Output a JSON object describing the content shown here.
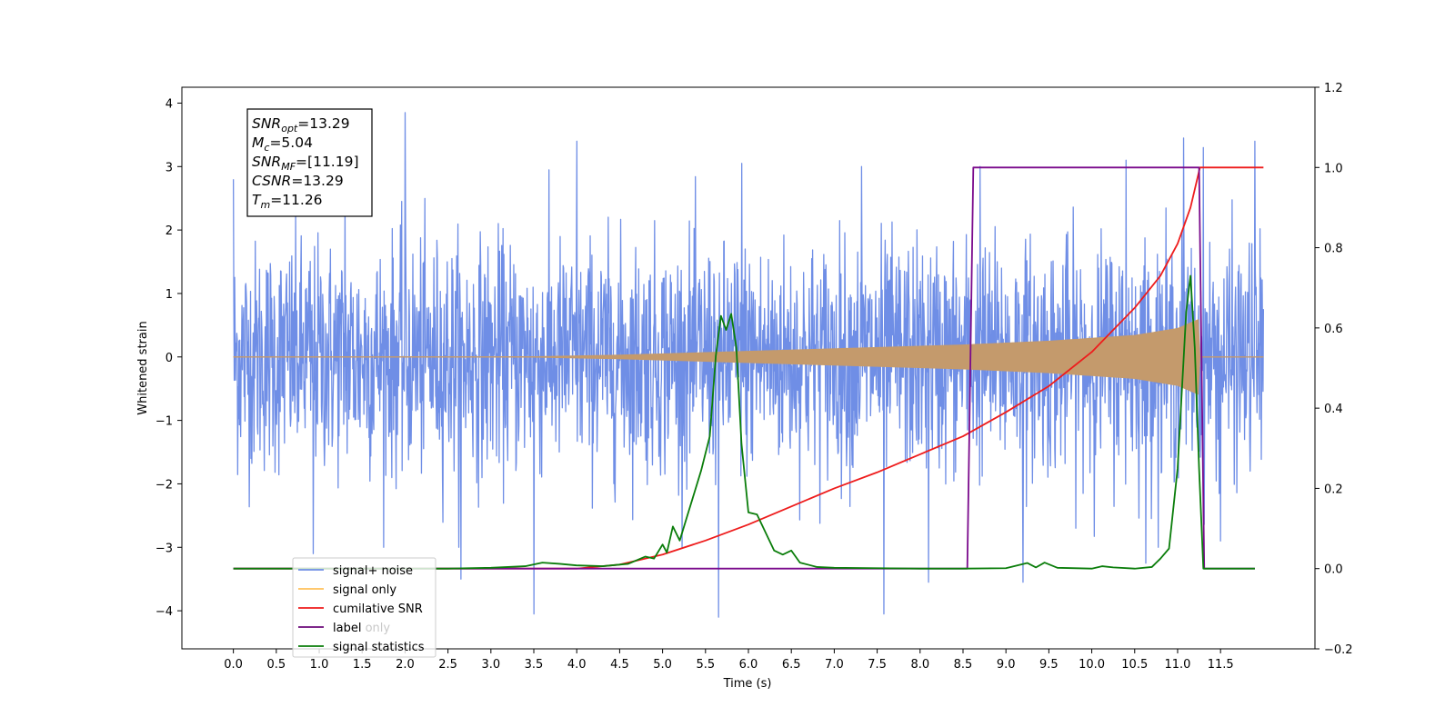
{
  "chart_data": {
    "type": "line",
    "xlabel": "Time (s)",
    "ylabel_left": "Whitened strain",
    "ylabel_right": "",
    "xlim": [
      -0.6,
      12.6
    ],
    "ylim_left": [
      -4.6,
      4.25
    ],
    "ylim_right": [
      -0.2,
      1.2
    ],
    "x_ticks": [
      0.0,
      0.5,
      1.0,
      1.5,
      2.0,
      2.5,
      3.0,
      3.5,
      4.0,
      4.5,
      5.0,
      5.5,
      6.0,
      6.5,
      7.0,
      7.5,
      8.0,
      8.5,
      9.0,
      9.5,
      10.0,
      10.5,
      11.0,
      11.5
    ],
    "x_tick_labels": [
      "0.0",
      "0.5",
      "1.0",
      "1.5",
      "2.0",
      "2.5",
      "3.0",
      "3.5",
      "4.0",
      "4.5",
      "5.0",
      "5.5",
      "6.0",
      "6.5",
      "7.0",
      "7.5",
      "8.0",
      "8.5",
      "9.0",
      "9.5",
      "10.0",
      "10.5",
      "11.0",
      "11.5"
    ],
    "y_left_ticks": [
      4,
      3,
      2,
      1,
      0,
      -1,
      -2,
      -3,
      -4
    ],
    "y_left_tick_labels": [
      "4",
      "3",
      "2",
      "1",
      "0",
      "−1",
      "−2",
      "−3",
      "−4"
    ],
    "y_right_ticks": [
      1.2,
      1.0,
      0.8,
      0.6,
      0.4,
      0.2,
      0.0,
      -0.2
    ],
    "y_right_tick_labels": [
      "1.2",
      "1.0",
      "0.8",
      "0.6",
      "0.4",
      "0.2",
      "0.0",
      "−0.2"
    ],
    "grid": false,
    "legend_position": "lower-left",
    "annotation": {
      "lines": [
        {
          "base": "SNR",
          "sub": "opt",
          "rest": "=13.29"
        },
        {
          "base": "M",
          "sub": "c",
          "rest": "=5.04"
        },
        {
          "base": "SNR",
          "sub": "MF",
          "rest": "=[11.19]"
        },
        {
          "base": "CSNR",
          "sub": "",
          "rest": "=13.29"
        },
        {
          "base": "T",
          "sub": "m",
          "rest": "=11.26"
        }
      ]
    },
    "series": [
      {
        "name": "signal+ noise",
        "axis": "left",
        "color": "#6f8ee6",
        "x_range": [
          0.0,
          12.0
        ],
        "sigma": 0.9,
        "spikes": [
          {
            "x": 0.0,
            "y": 2.8
          },
          {
            "x": 0.93,
            "y": -3.1
          },
          {
            "x": 1.3,
            "y": 2.5
          },
          {
            "x": 2.0,
            "y": 3.85
          },
          {
            "x": 2.65,
            "y": -3.5
          },
          {
            "x": 3.5,
            "y": -4.05
          },
          {
            "x": 4.0,
            "y": 3.4
          },
          {
            "x": 5.65,
            "y": -4.1
          },
          {
            "x": 5.92,
            "y": 3.05
          },
          {
            "x": 7.58,
            "y": -4.05
          },
          {
            "x": 7.32,
            "y": 3.0
          },
          {
            "x": 8.1,
            "y": -3.55
          },
          {
            "x": 8.7,
            "y": 3.0
          },
          {
            "x": 9.2,
            "y": -3.55
          },
          {
            "x": 10.4,
            "y": 3.1
          },
          {
            "x": 10.63,
            "y": -3.25
          },
          {
            "x": 11.07,
            "y": 3.45
          },
          {
            "x": 11.3,
            "y": 3.3
          },
          {
            "x": 11.9,
            "y": 3.4
          },
          {
            "x": 11.5,
            "y": -2.9
          }
        ]
      },
      {
        "name": "signal only",
        "axis": "left",
        "color": "#c49a6c",
        "x_range": [
          0.0,
          12.0
        ],
        "envelope_points": [
          [
            0.0,
            0.0
          ],
          [
            3.5,
            0.005
          ],
          [
            4.5,
            0.03
          ],
          [
            5.5,
            0.07
          ],
          [
            6.5,
            0.11
          ],
          [
            7.5,
            0.15
          ],
          [
            8.5,
            0.19
          ],
          [
            9.5,
            0.25
          ],
          [
            10.5,
            0.34
          ],
          [
            11.0,
            0.45
          ],
          [
            11.26,
            0.6
          ]
        ],
        "end_time": 11.26
      },
      {
        "name": "cumilative SNR",
        "axis": "right",
        "color": "#ee1c1c",
        "x": [
          0.0,
          4.0,
          4.5,
          5.0,
          5.5,
          6.0,
          6.5,
          7.0,
          7.5,
          8.0,
          8.5,
          9.0,
          9.5,
          10.0,
          10.5,
          10.8,
          11.0,
          11.15,
          11.26,
          11.27,
          12.0
        ],
        "y": [
          0.0,
          0.0,
          0.01,
          0.035,
          0.07,
          0.11,
          0.155,
          0.2,
          0.24,
          0.285,
          0.33,
          0.39,
          0.455,
          0.54,
          0.65,
          0.73,
          0.81,
          0.9,
          1.0,
          1.0,
          1.0
        ]
      },
      {
        "name": "label",
        "axis": "right",
        "color": "#7a0a8c",
        "x": [
          0.0,
          8.55,
          8.62,
          11.25,
          11.31,
          11.9
        ],
        "y": [
          0.0,
          0.0,
          1.0,
          1.0,
          0.0,
          0.0
        ]
      },
      {
        "name": "signal statistics",
        "axis": "right",
        "color": "#0a7d0a",
        "x": [
          0.0,
          2.5,
          3.0,
          3.4,
          3.6,
          3.8,
          4.0,
          4.3,
          4.6,
          4.8,
          4.9,
          5.0,
          5.05,
          5.12,
          5.2,
          5.3,
          5.45,
          5.55,
          5.62,
          5.68,
          5.74,
          5.8,
          5.86,
          5.92,
          6.0,
          6.1,
          6.2,
          6.3,
          6.4,
          6.5,
          6.6,
          6.8,
          7.0,
          7.5,
          8.0,
          8.5,
          9.0,
          9.25,
          9.35,
          9.45,
          9.6,
          10.0,
          10.12,
          10.25,
          10.5,
          10.7,
          10.8,
          10.9,
          11.0,
          11.1,
          11.15,
          11.2,
          11.25,
          11.3,
          11.9
        ],
        "y": [
          0.0,
          0.0,
          0.002,
          0.006,
          0.015,
          0.012,
          0.008,
          0.006,
          0.012,
          0.03,
          0.025,
          0.06,
          0.04,
          0.105,
          0.07,
          0.14,
          0.245,
          0.33,
          0.53,
          0.63,
          0.595,
          0.635,
          0.55,
          0.31,
          0.14,
          0.135,
          0.09,
          0.045,
          0.035,
          0.045,
          0.015,
          0.004,
          0.002,
          0.001,
          0.0,
          0.0,
          0.001,
          0.014,
          0.003,
          0.015,
          0.002,
          0.0,
          0.006,
          0.003,
          0.0,
          0.004,
          0.025,
          0.05,
          0.25,
          0.64,
          0.73,
          0.55,
          0.25,
          0.0,
          0.0
        ]
      }
    ],
    "legend_entries": [
      {
        "label": "signal+ noise",
        "color": "#6f8ee6"
      },
      {
        "label": "signal only",
        "color": "#ffc15a"
      },
      {
        "label": "cumilative SNR",
        "color": "#ee1c1c"
      },
      {
        "label": "label",
        "color": "#6b0a7a"
      },
      {
        "label": "signal statistics",
        "color": "#0a7d0a"
      }
    ],
    "legend_ghost_text": "label only"
  }
}
